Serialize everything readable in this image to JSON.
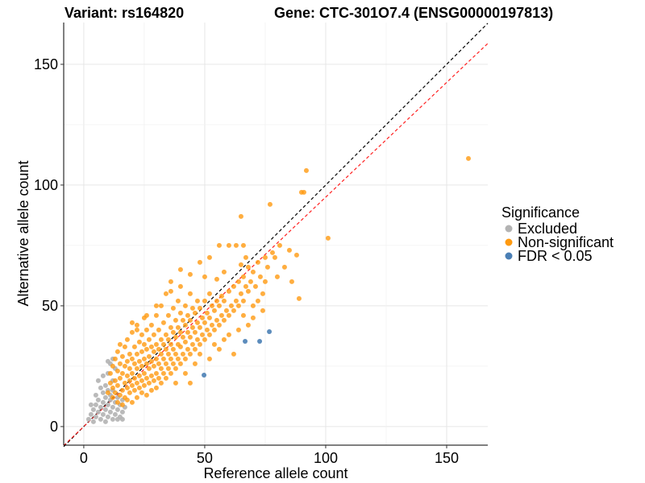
{
  "chart_data": {
    "type": "scatter",
    "title_left": "Variant: rs164820",
    "title_right": "Gene: CTC-301O7.4 (ENSG00000197813)",
    "xlabel": "Reference allele count",
    "ylabel": "Alternative allele count",
    "xlim": [
      -8.3,
      167
    ],
    "ylim": [
      -7.7,
      167.3
    ],
    "xticks": [
      "0",
      "50",
      "100",
      "150"
    ],
    "yticks": [
      "0",
      "50",
      "100",
      "150"
    ],
    "grid": true,
    "legend": {
      "title": "Significance",
      "position": "right",
      "entries": [
        "Excluded",
        "Non-significant",
        "FDR < 0.05"
      ]
    },
    "colors": {
      "Excluded": "#b3b3b3",
      "Non-significant": "#ff9a10",
      "FDR < 0.05": "#4a7fb5",
      "identity_line": "#000000",
      "fit_line": "#ff2020"
    },
    "reference_lines": [
      {
        "name": "identity",
        "slope": 1,
        "intercept": 0
      },
      {
        "name": "fit",
        "slope": 0.95,
        "intercept": 0
      }
    ],
    "series": [
      {
        "name": "Excluded",
        "points": [
          [
            2,
            3
          ],
          [
            3,
            5
          ],
          [
            4,
            2
          ],
          [
            4,
            7
          ],
          [
            5,
            4
          ],
          [
            5,
            9
          ],
          [
            6,
            6
          ],
          [
            6,
            11
          ],
          [
            7,
            3
          ],
          [
            7,
            8
          ],
          [
            8,
            5
          ],
          [
            8,
            10
          ],
          [
            8,
            14
          ],
          [
            9,
            2
          ],
          [
            9,
            7
          ],
          [
            9,
            12
          ],
          [
            9,
            17
          ],
          [
            10,
            4
          ],
          [
            10,
            9
          ],
          [
            10,
            15
          ],
          [
            10,
            22
          ],
          [
            11,
            6
          ],
          [
            11,
            11
          ],
          [
            11,
            26
          ],
          [
            12,
            3
          ],
          [
            12,
            8
          ],
          [
            12,
            19
          ],
          [
            12,
            28
          ],
          [
            13,
            5
          ],
          [
            13,
            10
          ],
          [
            13,
            24
          ],
          [
            14,
            7
          ],
          [
            14,
            12
          ],
          [
            15,
            4
          ],
          [
            15,
            9
          ],
          [
            16,
            6
          ],
          [
            16,
            11
          ],
          [
            17,
            8
          ],
          [
            3,
            9
          ],
          [
            5,
            13
          ],
          [
            7,
            16
          ],
          [
            6,
            19
          ],
          [
            8,
            21
          ],
          [
            12,
            15
          ],
          [
            10,
            27
          ],
          [
            11,
            13
          ],
          [
            14,
            3
          ],
          [
            16,
            3
          ]
        ]
      },
      {
        "name": "Non-significant",
        "points": [
          [
            10,
            14
          ],
          [
            11,
            18
          ],
          [
            11,
            22
          ],
          [
            12,
            12
          ],
          [
            12,
            16
          ],
          [
            12,
            25
          ],
          [
            13,
            14
          ],
          [
            13,
            19
          ],
          [
            13,
            28
          ],
          [
            14,
            10
          ],
          [
            14,
            17
          ],
          [
            14,
            23
          ],
          [
            14,
            31
          ],
          [
            15,
            13
          ],
          [
            15,
            20
          ],
          [
            15,
            26
          ],
          [
            15,
            34
          ],
          [
            16,
            9
          ],
          [
            16,
            15
          ],
          [
            16,
            22
          ],
          [
            16,
            29
          ],
          [
            17,
            12
          ],
          [
            17,
            18
          ],
          [
            17,
            25
          ],
          [
            17,
            33
          ],
          [
            18,
            11
          ],
          [
            18,
            16
          ],
          [
            18,
            21
          ],
          [
            18,
            27
          ],
          [
            18,
            36
          ],
          [
            19,
            14
          ],
          [
            19,
            19
          ],
          [
            19,
            24
          ],
          [
            19,
            30
          ],
          [
            20,
            10
          ],
          [
            20,
            17
          ],
          [
            20,
            22
          ],
          [
            20,
            28
          ],
          [
            20,
            39
          ],
          [
            21,
            15
          ],
          [
            21,
            20
          ],
          [
            21,
            26
          ],
          [
            21,
            33
          ],
          [
            22,
            12
          ],
          [
            22,
            18
          ],
          [
            22,
            24
          ],
          [
            22,
            30
          ],
          [
            22,
            42
          ],
          [
            23,
            16
          ],
          [
            23,
            21
          ],
          [
            23,
            27
          ],
          [
            23,
            35
          ],
          [
            24,
            14
          ],
          [
            24,
            19
          ],
          [
            24,
            25
          ],
          [
            24,
            31
          ],
          [
            24,
            38
          ],
          [
            25,
            17
          ],
          [
            25,
            22
          ],
          [
            25,
            28
          ],
          [
            25,
            34
          ],
          [
            25,
            45
          ],
          [
            26,
            13
          ],
          [
            26,
            20
          ],
          [
            26,
            26
          ],
          [
            26,
            32
          ],
          [
            26,
            40
          ],
          [
            27,
            18
          ],
          [
            27,
            24
          ],
          [
            27,
            29
          ],
          [
            27,
            36
          ],
          [
            28,
            15
          ],
          [
            28,
            21
          ],
          [
            28,
            27
          ],
          [
            28,
            33
          ],
          [
            28,
            42
          ],
          [
            29,
            19
          ],
          [
            29,
            25
          ],
          [
            29,
            31
          ],
          [
            29,
            38
          ],
          [
            30,
            16
          ],
          [
            30,
            22
          ],
          [
            30,
            28
          ],
          [
            30,
            34
          ],
          [
            30,
            46
          ],
          [
            31,
            20
          ],
          [
            31,
            26
          ],
          [
            31,
            32
          ],
          [
            31,
            40
          ],
          [
            32,
            18
          ],
          [
            32,
            24
          ],
          [
            32,
            30
          ],
          [
            32,
            36
          ],
          [
            32,
            50
          ],
          [
            33,
            22
          ],
          [
            33,
            28
          ],
          [
            33,
            34
          ],
          [
            33,
            43
          ],
          [
            34,
            20
          ],
          [
            34,
            26
          ],
          [
            34,
            32
          ],
          [
            34,
            38
          ],
          [
            34,
            55
          ],
          [
            35,
            24
          ],
          [
            35,
            30
          ],
          [
            35,
            36
          ],
          [
            35,
            46
          ],
          [
            36,
            22
          ],
          [
            36,
            28
          ],
          [
            36,
            34
          ],
          [
            36,
            41
          ],
          [
            36,
            60
          ],
          [
            37,
            26
          ],
          [
            37,
            32
          ],
          [
            37,
            39
          ],
          [
            37,
            49
          ],
          [
            38,
            24
          ],
          [
            38,
            30
          ],
          [
            38,
            37
          ],
          [
            38,
            44
          ],
          [
            39,
            28
          ],
          [
            39,
            34
          ],
          [
            39,
            41
          ],
          [
            39,
            52
          ],
          [
            40,
            26
          ],
          [
            40,
            33
          ],
          [
            40,
            39
          ],
          [
            40,
            47
          ],
          [
            40,
            65
          ],
          [
            41,
            30
          ],
          [
            41,
            37
          ],
          [
            41,
            44
          ],
          [
            42,
            28
          ],
          [
            42,
            35
          ],
          [
            42,
            42
          ],
          [
            42,
            50
          ],
          [
            43,
            32
          ],
          [
            43,
            39
          ],
          [
            43,
            46
          ],
          [
            44,
            30
          ],
          [
            44,
            37
          ],
          [
            44,
            44
          ],
          [
            44,
            55
          ],
          [
            45,
            34
          ],
          [
            45,
            41
          ],
          [
            45,
            49
          ],
          [
            46,
            32
          ],
          [
            46,
            39
          ],
          [
            46,
            47
          ],
          [
            47,
            36
          ],
          [
            47,
            43
          ],
          [
            47,
            52
          ],
          [
            48,
            34
          ],
          [
            48,
            41
          ],
          [
            48,
            49
          ],
          [
            49,
            38
          ],
          [
            49,
            45
          ],
          [
            50,
            36
          ],
          [
            50,
            43
          ],
          [
            50,
            52
          ],
          [
            50,
            62
          ],
          [
            51,
            40
          ],
          [
            51,
            47
          ],
          [
            52,
            38
          ],
          [
            52,
            45
          ],
          [
            52,
            55
          ],
          [
            53,
            42
          ],
          [
            53,
            50
          ],
          [
            54,
            40
          ],
          [
            54,
            48
          ],
          [
            55,
            44
          ],
          [
            55,
            52
          ],
          [
            55,
            61
          ],
          [
            56,
            42
          ],
          [
            56,
            50
          ],
          [
            57,
            46
          ],
          [
            57,
            54
          ],
          [
            58,
            44
          ],
          [
            58,
            52
          ],
          [
            58,
            64
          ],
          [
            59,
            48
          ],
          [
            60,
            46
          ],
          [
            60,
            56
          ],
          [
            61,
            50
          ],
          [
            62,
            48
          ],
          [
            62,
            58
          ],
          [
            63,
            52
          ],
          [
            63,
            75
          ],
          [
            64,
            50
          ],
          [
            64,
            60
          ],
          [
            65,
            55
          ],
          [
            65,
            67
          ],
          [
            66,
            52
          ],
          [
            66,
            62
          ],
          [
            67,
            58
          ],
          [
            67,
            70
          ],
          [
            68,
            56
          ],
          [
            68,
            66
          ],
          [
            69,
            60
          ],
          [
            70,
            50
          ],
          [
            70,
            64
          ],
          [
            71,
            58
          ],
          [
            72,
            68
          ],
          [
            73,
            62
          ],
          [
            74,
            55
          ],
          [
            75,
            70
          ],
          [
            75,
            60
          ],
          [
            76,
            66
          ],
          [
            77,
            92
          ],
          [
            78,
            72
          ],
          [
            79,
            70
          ],
          [
            80,
            62
          ],
          [
            81,
            75
          ],
          [
            83,
            66
          ],
          [
            85,
            73
          ],
          [
            86,
            60
          ],
          [
            88,
            71
          ],
          [
            89,
            53
          ],
          [
            90,
            97
          ],
          [
            91,
            97
          ],
          [
            92,
            106
          ],
          [
            101,
            78
          ],
          [
            159,
            111
          ],
          [
            65,
            87
          ],
          [
            66,
            75
          ],
          [
            60,
            75
          ],
          [
            56,
            75
          ],
          [
            52,
            70
          ],
          [
            48,
            68
          ],
          [
            44,
            63
          ],
          [
            40,
            58
          ],
          [
            36,
            56
          ],
          [
            30,
            50
          ],
          [
            26,
            46
          ],
          [
            22,
            40
          ],
          [
            20,
            43
          ],
          [
            38,
            18
          ],
          [
            42,
            22
          ],
          [
            46,
            26
          ],
          [
            44,
            18
          ],
          [
            52,
            28
          ],
          [
            56,
            32
          ],
          [
            60,
            38
          ],
          [
            62,
            30
          ],
          [
            58,
            36
          ],
          [
            54,
            34
          ],
          [
            48,
            30
          ],
          [
            64,
            40
          ],
          [
            68,
            42
          ],
          [
            70,
            45
          ],
          [
            74,
            48
          ],
          [
            72,
            52
          ],
          [
            66,
            46
          ]
        ]
      },
      {
        "name": "FDR < 0.05",
        "points": [
          [
            49.7,
            21.3
          ],
          [
            66.7,
            35.3
          ],
          [
            72.7,
            35.3
          ],
          [
            76.7,
            39.3
          ]
        ]
      }
    ]
  }
}
